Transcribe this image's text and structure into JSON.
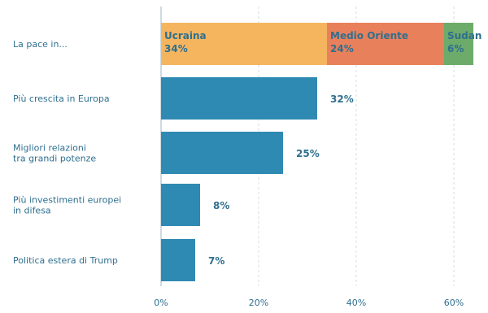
{
  "chart_data": {
    "type": "bar",
    "orientation": "horizontal",
    "title": "",
    "xlabel": "",
    "ylabel": "",
    "xlim": [
      0,
      64
    ],
    "x_ticks": [
      0,
      20,
      40,
      60
    ],
    "x_tick_labels": [
      "0%",
      "20%",
      "40%",
      "60%"
    ],
    "grid": "vertical-dashed",
    "legend": "none",
    "categories": [
      "La pace in...",
      "Più crescita in Europa",
      "Migliori relazioni tra grandi potenze",
      "Più investimenti europei in difesa",
      "Politica estera di Trump"
    ],
    "values": [
      null,
      32,
      25,
      8,
      7
    ],
    "value_labels": [
      "",
      "32%",
      "25%",
      "8%",
      "7%"
    ],
    "stacked_first_row": {
      "segments": [
        {
          "name": "Ucraina",
          "value": 34,
          "label": "34%",
          "color": "#f5b55f"
        },
        {
          "name": "Medio Oriente",
          "value": 24,
          "label": "24%",
          "color": "#e8805c"
        },
        {
          "name": "Sudan",
          "value": 6,
          "label": "6%",
          "color": "#6dab6b"
        }
      ]
    },
    "bar_color": "#2f8ab3"
  }
}
